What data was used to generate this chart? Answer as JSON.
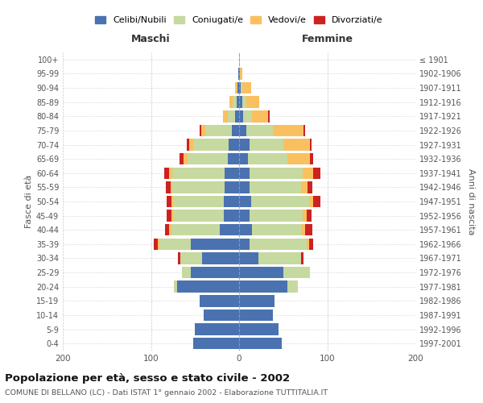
{
  "age_groups": [
    "0-4",
    "5-9",
    "10-14",
    "15-19",
    "20-24",
    "25-29",
    "30-34",
    "35-39",
    "40-44",
    "45-49",
    "50-54",
    "55-59",
    "60-64",
    "65-69",
    "70-74",
    "75-79",
    "80-84",
    "85-89",
    "90-94",
    "95-99",
    "100+"
  ],
  "birth_years": [
    "1997-2001",
    "1992-1996",
    "1987-1991",
    "1982-1986",
    "1977-1981",
    "1972-1976",
    "1967-1971",
    "1962-1966",
    "1957-1961",
    "1952-1956",
    "1947-1951",
    "1942-1946",
    "1937-1941",
    "1932-1936",
    "1927-1931",
    "1922-1926",
    "1917-1921",
    "1912-1916",
    "1907-1911",
    "1902-1906",
    "≤ 1901"
  ],
  "colors": {
    "celibi": "#4a72b0",
    "coniugati": "#c6d9a0",
    "vedovi": "#fac060",
    "divorziati": "#cc2222"
  },
  "maschi": {
    "celibi": [
      52,
      50,
      40,
      45,
      70,
      55,
      42,
      55,
      22,
      17,
      17,
      16,
      16,
      13,
      12,
      8,
      5,
      3,
      2,
      1,
      0
    ],
    "coniugati": [
      0,
      0,
      0,
      0,
      4,
      10,
      25,
      35,
      55,
      58,
      58,
      60,
      60,
      45,
      40,
      30,
      8,
      4,
      0,
      0,
      0
    ],
    "vedovi": [
      0,
      0,
      0,
      0,
      0,
      0,
      0,
      2,
      2,
      2,
      2,
      2,
      3,
      5,
      5,
      5,
      5,
      4,
      3,
      0,
      0
    ],
    "divorziati": [
      0,
      0,
      0,
      0,
      0,
      0,
      2,
      5,
      5,
      5,
      5,
      5,
      6,
      5,
      2,
      2,
      0,
      0,
      0,
      0,
      0
    ]
  },
  "femmine": {
    "celibi": [
      48,
      45,
      38,
      40,
      55,
      50,
      22,
      12,
      15,
      12,
      14,
      12,
      12,
      10,
      12,
      8,
      5,
      4,
      2,
      1,
      0
    ],
    "coniugati": [
      0,
      0,
      0,
      0,
      12,
      30,
      48,
      65,
      55,
      60,
      65,
      58,
      60,
      45,
      38,
      30,
      10,
      4,
      2,
      0,
      0
    ],
    "vedovi": [
      0,
      0,
      0,
      0,
      0,
      0,
      0,
      2,
      5,
      5,
      5,
      8,
      12,
      25,
      30,
      35,
      18,
      15,
      10,
      3,
      1
    ],
    "divorziati": [
      0,
      0,
      0,
      0,
      0,
      0,
      3,
      5,
      8,
      5,
      8,
      5,
      8,
      4,
      2,
      2,
      2,
      0,
      0,
      0,
      0
    ]
  },
  "title": "Popolazione per età, sesso e stato civile - 2002",
  "subtitle": "COMUNE DI BELLANO (LC) - Dati ISTAT 1° gennaio 2002 - Elaborazione TUTTITALIA.IT",
  "xlabel_left": "Maschi",
  "xlabel_right": "Femmine",
  "ylabel_left": "Fasce di età",
  "ylabel_right": "Anni di nascita",
  "legend_labels": [
    "Celibi/Nubili",
    "Coniugati/e",
    "Vedovi/e",
    "Divorziati/e"
  ],
  "xlim": 200,
  "background_color": "#ffffff",
  "grid_color": "#bbbbbb"
}
